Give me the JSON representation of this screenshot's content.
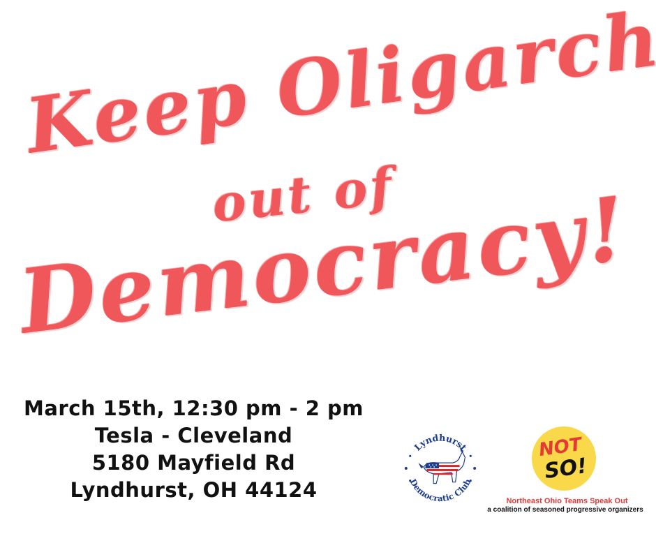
{
  "headline": {
    "line1": "Keep Oligarchs",
    "line2": "out of",
    "line3": "Democracy!"
  },
  "event": {
    "date_time": "March 15th, 12:30 pm - 2 pm",
    "venue": "Tesla - Cleveland",
    "street": "5180 Mayfield Rd",
    "city": "Lyndhurst, OH 44124"
  },
  "logos": {
    "lyndhurst": {
      "top_text": "Lyndhurst",
      "bottom_text": "Democratic Club",
      "icon": "donkey-icon"
    },
    "notso": {
      "line1": "NOT",
      "line2": "SO!",
      "circle_color": "#f9d84a"
    }
  },
  "org": {
    "name": "Northeast Ohio Teams Speak Out",
    "tagline": "a coalition of seasoned progressive organizers"
  },
  "colors": {
    "headline": "#f0575a",
    "ldc_blue": "#1d3c8f",
    "org_red": "#e53935"
  }
}
